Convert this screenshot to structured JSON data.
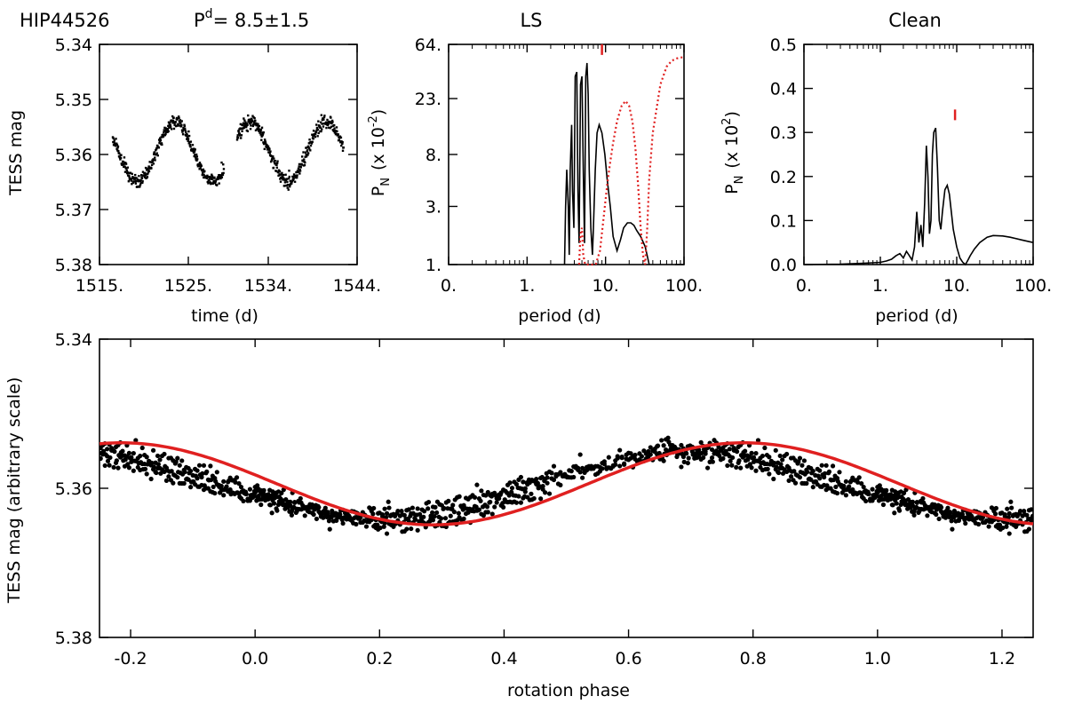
{
  "figure": {
    "star": "HIP44526",
    "period_label": "P",
    "period_sup": "d",
    "period_value": "=  8.5±1.5"
  },
  "chart_data": [
    {
      "id": "lightcurve",
      "type": "scatter",
      "title": "",
      "xlabel": "time (d)",
      "ylabel": "TESS mag",
      "xlim": [
        1515,
        1544
      ],
      "ylim": [
        5.38,
        5.34
      ],
      "x_ticks": [
        1515,
        1525,
        1534,
        1544
      ],
      "x_tick_labels": [
        "1515.",
        "1525.",
        "1534.",
        "1544."
      ],
      "y_ticks": [
        5.34,
        5.35,
        5.36,
        5.37,
        5.38
      ],
      "y_tick_labels": [
        "5.34",
        "5.35",
        "5.36",
        "5.37",
        "5.38"
      ],
      "segments": [
        [
          1516.5,
          1529.0
        ],
        [
          1530.5,
          1542.5
        ]
      ],
      "model": {
        "mean": 5.3595,
        "amplitude": 0.0055,
        "period": 8.5,
        "peak_time": 1523.5
      }
    },
    {
      "id": "ls",
      "type": "line",
      "title": "LS",
      "xlabel": "period (d)",
      "ylabel": "P",
      "ylabel_sub": "N",
      "ylabel_scale": "(x 10",
      "ylabel_exp": "-2",
      "x_scale": "log",
      "y_scale": "log",
      "xlim": [
        0.1,
        100
      ],
      "ylim": [
        1,
        64
      ],
      "x_ticks": [
        0.1,
        1,
        10,
        100
      ],
      "x_tick_labels": [
        "0.",
        "1.",
        "10.",
        "100."
      ],
      "y_ticks": [
        1,
        3,
        8,
        23,
        64
      ],
      "y_tick_labels": [
        "1.",
        "3.",
        "8.",
        "23.",
        "64."
      ],
      "series": [
        {
          "name": "periodogram",
          "style": "solid",
          "color": "#000000",
          "x": [
            3.0,
            3.1,
            3.2,
            3.35,
            3.45,
            3.55,
            3.7,
            3.8,
            3.95,
            4.1,
            4.3,
            4.45,
            4.6,
            4.8,
            5.0,
            5.2,
            5.4,
            5.6,
            5.8,
            6.0,
            6.2,
            6.5,
            6.8,
            7.0,
            7.4,
            7.8,
            8.3,
            9.0,
            9.8,
            10.5,
            11.5,
            12.5,
            14.0,
            15.5,
            17.0,
            19.0,
            21.0,
            23.0,
            25.0,
            28.0,
            32.0,
            36.0
          ],
          "y": [
            1.0,
            3.0,
            6.0,
            3.0,
            1.2,
            6.0,
            14.0,
            4.0,
            2.0,
            35.0,
            38.0,
            4.0,
            1.5,
            30.0,
            35.0,
            6.0,
            1.5,
            35.0,
            45.0,
            25.0,
            6.0,
            2.0,
            1.2,
            2.0,
            6.0,
            12.0,
            14.0,
            12.0,
            8.0,
            5.0,
            3.0,
            1.7,
            1.3,
            1.6,
            2.0,
            2.2,
            2.2,
            2.1,
            1.9,
            1.7,
            1.4,
            1.0
          ]
        },
        {
          "name": "window",
          "style": "dotted",
          "color": "#e02020",
          "x": [
            4.6,
            4.8,
            5.0,
            5.2,
            5.5,
            6.5,
            7.5,
            8.5,
            9.5,
            10.5,
            11.5,
            12.5,
            14.0,
            16.0,
            18.0,
            20.0,
            22.0,
            24.0,
            26.0,
            28.0,
            30.0,
            32.0,
            34.0,
            36.0,
            40.0,
            50.0,
            60.0,
            70.0,
            80.0,
            90.0,
            100.0
          ],
          "y": [
            1.0,
            1.8,
            2.0,
            1.2,
            1.0,
            1.0,
            1.0,
            1.3,
            2.5,
            4.5,
            7.0,
            10.0,
            15.0,
            20.0,
            22.0,
            20.0,
            15.0,
            9.0,
            4.5,
            2.0,
            1.2,
            1.0,
            2.0,
            5.0,
            12.0,
            30.0,
            42.0,
            47.0,
            49.0,
            50.0,
            50.0
          ]
        }
      ],
      "marker": {
        "x": 9.0,
        "y": 58,
        "color": "#e02020"
      }
    },
    {
      "id": "clean",
      "type": "line",
      "title": "Clean",
      "xlabel": "period (d)",
      "ylabel": "P",
      "ylabel_sub": "N",
      "ylabel_scale": "(x 10",
      "ylabel_exp": "2",
      "x_scale": "log",
      "xlim": [
        0.1,
        100
      ],
      "ylim": [
        0.0,
        0.5
      ],
      "x_ticks": [
        0.1,
        1,
        10,
        100
      ],
      "x_tick_labels": [
        "0.",
        "1.",
        "10.",
        "100."
      ],
      "y_ticks": [
        0.0,
        0.1,
        0.2,
        0.3,
        0.4,
        0.5
      ],
      "y_tick_labels": [
        "0.0",
        "0.1",
        "0.2",
        "0.3",
        "0.4",
        "0.5"
      ],
      "series": [
        {
          "name": "clean",
          "style": "solid",
          "color": "#000000",
          "x": [
            0.1,
            0.3,
            0.6,
            1.0,
            1.2,
            1.4,
            1.6,
            1.8,
            2.0,
            2.2,
            2.4,
            2.6,
            2.8,
            3.0,
            3.2,
            3.4,
            3.6,
            3.8,
            4.0,
            4.2,
            4.4,
            4.6,
            4.8,
            5.0,
            5.3,
            5.6,
            5.9,
            6.2,
            6.5,
            7.0,
            7.5,
            8.0,
            8.5,
            9.0,
            10.0,
            11.0,
            12.0,
            13.0,
            14.0,
            15.0,
            17.0,
            20.0,
            25.0,
            30.0,
            40.0,
            50.0,
            70.0,
            100.0
          ],
          "y": [
            0.0,
            0.001,
            0.003,
            0.005,
            0.008,
            0.012,
            0.02,
            0.025,
            0.015,
            0.03,
            0.02,
            0.01,
            0.04,
            0.12,
            0.05,
            0.09,
            0.04,
            0.14,
            0.27,
            0.2,
            0.07,
            0.1,
            0.25,
            0.3,
            0.31,
            0.22,
            0.1,
            0.08,
            0.12,
            0.17,
            0.18,
            0.16,
            0.12,
            0.08,
            0.04,
            0.015,
            0.005,
            0.0,
            0.01,
            0.02,
            0.035,
            0.05,
            0.062,
            0.066,
            0.065,
            0.062,
            0.056,
            0.05
          ]
        }
      ],
      "marker": {
        "x": 9.5,
        "y": 0.34,
        "color": "#e02020"
      }
    },
    {
      "id": "phased",
      "type": "scatter",
      "title": "",
      "xlabel": "rotation phase",
      "ylabel": "TESS mag (arbitrary scale)",
      "xlim": [
        -0.25,
        1.25
      ],
      "ylim": [
        5.38,
        5.34
      ],
      "x_ticks": [
        -0.2,
        0.0,
        0.2,
        0.4,
        0.6,
        0.8,
        1.0,
        1.2
      ],
      "x_tick_labels": [
        "-0.2",
        "0.0",
        "0.2",
        "0.4",
        "0.6",
        "0.8",
        "1.0",
        "1.2"
      ],
      "y_ticks": [
        5.34,
        5.36,
        5.38
      ],
      "y_tick_labels": [
        "5.34",
        "5.36",
        "5.38"
      ],
      "fit": {
        "name": "sinusoidal fit",
        "color": "#e02020",
        "mean": 5.3594,
        "amplitude": 0.0055,
        "max_phase": 0.785
      }
    }
  ]
}
